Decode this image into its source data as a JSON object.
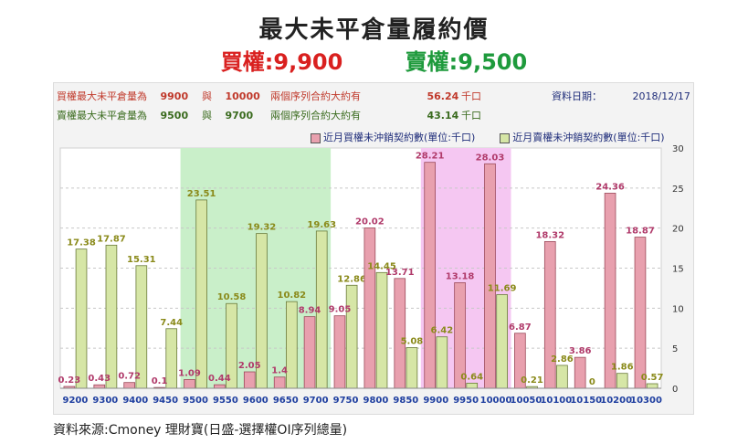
{
  "title": "最大未平倉量履約價",
  "subtitle": {
    "call": "買權:9,900",
    "put": "賣權:9,500"
  },
  "info": {
    "call_row": {
      "label": "買權最大未平倉量為",
      "strike1": "9900",
      "sep": "與",
      "strike2": "10000",
      "text": "兩個序列合約大約有",
      "value": "56.24",
      "unit": "千口"
    },
    "put_row": {
      "label": "賣權最大未平倉量為",
      "strike1": "9500",
      "sep": "與",
      "strike2": "9700",
      "text": "兩個序列合約大約有",
      "value": "43.14",
      "unit": "千口"
    },
    "date_label": "資料日期：",
    "date": "2018/12/17"
  },
  "footer": "資料來源:Cmoney 理財寶(日盛-選擇權OI序列總量)",
  "colors": {
    "call": "#e8a0ae",
    "put": "#d6e6a6",
    "call_label": "#b03a6a",
    "put_label": "#8a8a1a",
    "green_band": "#c9efc9",
    "pink_band": "#f5c7f2"
  },
  "chart_data": {
    "type": "bar",
    "categories": [
      "9200",
      "9300",
      "9400",
      "9450",
      "9500",
      "9550",
      "9600",
      "9650",
      "9700",
      "9750",
      "9800",
      "9850",
      "9900",
      "9950",
      "10000",
      "10050",
      "10100",
      "10150",
      "10200",
      "10300"
    ],
    "series": [
      {
        "name": "近月買權未沖銷契約數(單位:千口)",
        "values": [
          0.23,
          0.43,
          0.72,
          0.1,
          1.09,
          0.44,
          2.05,
          1.4,
          8.94,
          9.05,
          20.02,
          13.71,
          28.21,
          13.18,
          28.03,
          6.87,
          18.32,
          3.86,
          24.36,
          18.87
        ],
        "labels": [
          "0.23",
          "0.43",
          "0.72",
          "0.1",
          "1.09",
          "0.44",
          "2.05",
          "1.4",
          "8.94",
          "9.05",
          "20.02",
          "13.71",
          "28.21",
          "13.18",
          "28.03",
          "6.87",
          "18.32",
          "3.86",
          "24.36",
          "18.87"
        ]
      },
      {
        "name": "近月賣權未沖銷契約數(單位:千口)",
        "values": [
          17.38,
          17.87,
          15.31,
          7.44,
          23.51,
          10.58,
          19.32,
          10.82,
          19.63,
          12.86,
          14.45,
          5.08,
          6.42,
          0.64,
          11.69,
          0.21,
          2.86,
          0,
          1.86,
          0.57
        ],
        "labels": [
          "17.38",
          "17.87",
          "15.31",
          "7.44",
          "23.51",
          "10.58",
          "19.32",
          "10.82",
          "19.63",
          "12.86",
          "14.45",
          "5.08",
          "6.42",
          "0.64",
          "11.69",
          "0.21",
          "2.86",
          "0",
          "1.86",
          "0.57"
        ]
      }
    ],
    "ylim": [
      0,
      30
    ],
    "yticks": [
      0,
      5,
      10,
      15,
      20,
      25,
      30
    ],
    "highlight_put_range": [
      "9500",
      "9700"
    ],
    "highlight_call_range": [
      "9900",
      "10000"
    ],
    "grid": true,
    "legend_position": "top-right"
  }
}
